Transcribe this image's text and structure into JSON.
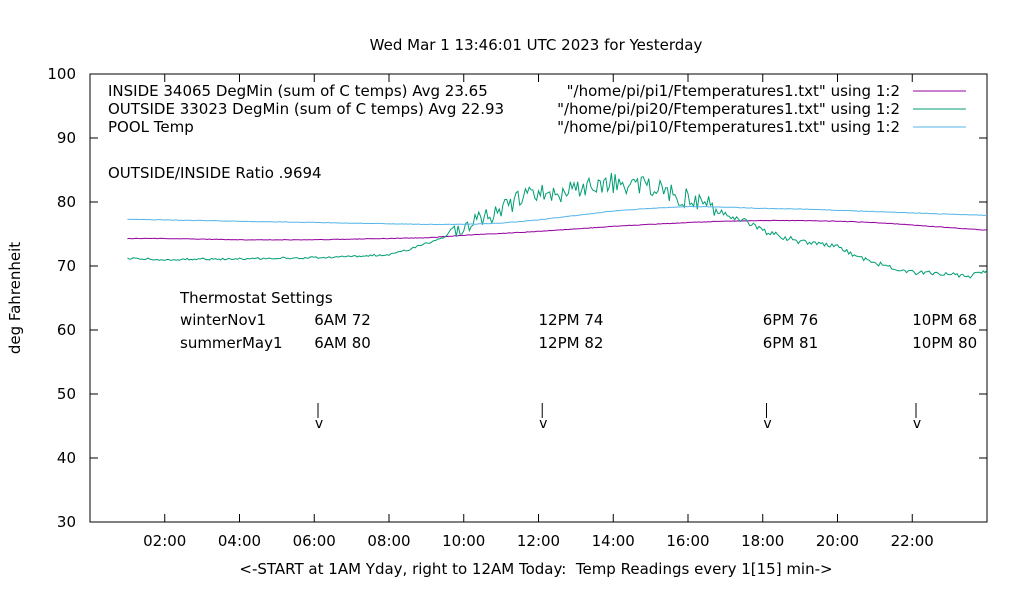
{
  "chart_data": {
    "type": "line",
    "title": "Wed Mar  1 13:46:01 UTC 2023 for Yesterday",
    "xlabel": "<-START at 1AM Yday, right to 12AM Today:  Temp Readings every 1[15] min->",
    "ylabel": "deg Fahrenheit",
    "xlim_hours": [
      0.0,
      24.0
    ],
    "ylim": [
      30,
      100
    ],
    "x_ticks": [
      {
        "hour": 2,
        "label": "02:00"
      },
      {
        "hour": 4,
        "label": "04:00"
      },
      {
        "hour": 6,
        "label": "06:00"
      },
      {
        "hour": 8,
        "label": "08:00"
      },
      {
        "hour": 10,
        "label": "10:00"
      },
      {
        "hour": 12,
        "label": "12:00"
      },
      {
        "hour": 14,
        "label": "14:00"
      },
      {
        "hour": 16,
        "label": "16:00"
      },
      {
        "hour": 18,
        "label": "18:00"
      },
      {
        "hour": 20,
        "label": "20:00"
      },
      {
        "hour": 22,
        "label": "22:00"
      }
    ],
    "y_ticks": [
      30,
      40,
      50,
      60,
      70,
      80,
      90,
      100
    ],
    "grid": false,
    "legend_position": "top",
    "series": [
      {
        "name": "INSIDE 34065 DegMin (sum of C temps) Avg 23.65",
        "file_label": "\"/home/pi/pi1/Ftemperatures1.txt\" using 1:2",
        "color": "#94009f",
        "x": [
          1.0,
          2.0,
          3.0,
          4.0,
          5.0,
          6.0,
          7.0,
          8.0,
          9.0,
          10.0,
          11.0,
          12.0,
          13.0,
          14.0,
          15.0,
          16.0,
          17.0,
          18.0,
          19.0,
          20.0,
          21.0,
          22.0,
          23.0,
          24.0
        ],
        "y": [
          74.3,
          74.3,
          74.2,
          74.1,
          74.1,
          74.1,
          74.2,
          74.3,
          74.4,
          74.8,
          75.1,
          75.4,
          75.8,
          76.2,
          76.5,
          76.8,
          77.0,
          77.1,
          77.1,
          77.0,
          76.8,
          76.4,
          76.0,
          75.6
        ]
      },
      {
        "name": "OUTSIDE 33023 DegMin (sum of C temps) Avg 22.93",
        "file_label": "\"/home/pi/pi20/Ftemperatures1.txt\" using 1:2",
        "color": "#009e73",
        "x": [
          1.0,
          2.0,
          3.0,
          4.0,
          5.0,
          6.0,
          7.0,
          8.0,
          8.5,
          9.0,
          9.5,
          9.7,
          10.0,
          10.5,
          11.0,
          11.5,
          12.0,
          12.5,
          13.0,
          13.5,
          14.0,
          14.5,
          15.0,
          15.5,
          16.0,
          16.5,
          17.0,
          17.5,
          18.0,
          18.5,
          19.0,
          19.5,
          20.0,
          20.5,
          21.0,
          21.5,
          22.0,
          22.5,
          23.0,
          23.5,
          24.0
        ],
        "y": [
          71.2,
          71.0,
          71.1,
          71.1,
          71.2,
          71.3,
          71.5,
          71.8,
          72.5,
          73.5,
          74.5,
          76.0,
          76.5,
          77.5,
          79.0,
          80.5,
          81.5,
          81.0,
          82.0,
          82.5,
          83.0,
          82.5,
          82.5,
          81.5,
          80.5,
          79.5,
          78.0,
          77.0,
          75.5,
          74.5,
          73.8,
          73.5,
          73.0,
          71.5,
          70.5,
          69.8,
          69.0,
          69.0,
          68.8,
          68.3,
          69.3
        ]
      },
      {
        "name": "POOL Temp",
        "file_label": "\"/home/pi/pi10/Ftemperatures1.txt\" using 1:2",
        "color": "#56b4e9",
        "x": [
          1.0,
          2.0,
          3.0,
          4.0,
          5.0,
          6.0,
          7.0,
          8.0,
          9.0,
          10.0,
          11.0,
          12.0,
          13.0,
          14.0,
          15.0,
          16.0,
          17.0,
          18.0,
          19.0,
          20.0,
          21.0,
          22.0,
          23.0,
          24.0
        ],
        "y": [
          77.3,
          77.2,
          77.1,
          77.0,
          76.9,
          76.8,
          76.7,
          76.6,
          76.5,
          76.5,
          76.7,
          77.2,
          77.9,
          78.6,
          79.0,
          79.3,
          79.2,
          79.0,
          78.9,
          78.7,
          78.5,
          78.3,
          78.1,
          77.9
        ]
      }
    ],
    "annotations": {
      "ratio": "OUTSIDE/INSIDE Ratio .9694",
      "thermostat_title": "Thermostat Settings",
      "rows": [
        {
          "label": "winterNov1",
          "settings": [
            "6AM 72",
            "12PM 74",
            "6PM 76",
            "10PM 68"
          ]
        },
        {
          "label": "summerMay1",
          "settings": [
            "6AM 80",
            "12PM 82",
            "6PM 81",
            "10PM 80"
          ]
        }
      ],
      "setting_hours": [
        6,
        12,
        18,
        22
      ],
      "arrow_hours": [
        6.1,
        12.1,
        18.1,
        22.1
      ],
      "arrow_glyph": "v"
    }
  }
}
